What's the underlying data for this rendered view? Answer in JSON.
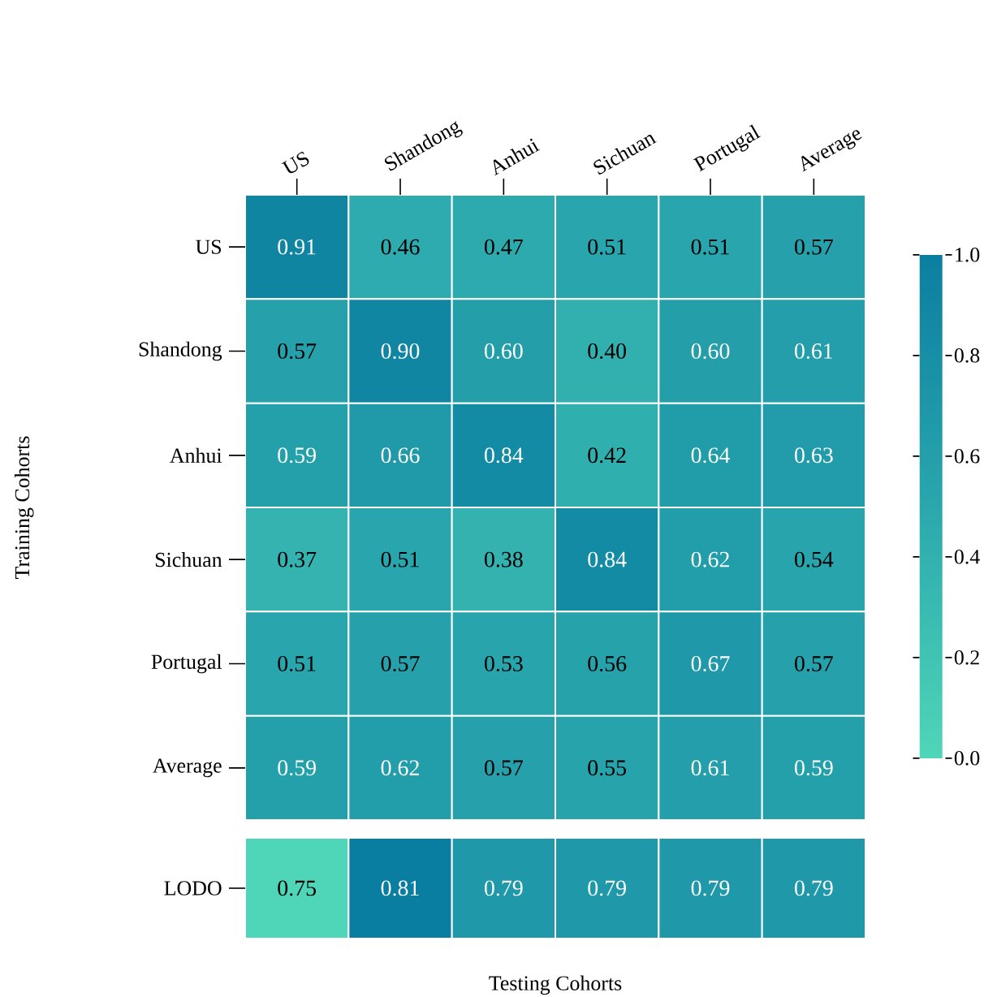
{
  "chart_data": [
    {
      "type": "heatmap",
      "ylabel": "Training Cohorts",
      "categories": [
        "US",
        "Shandong",
        "Anhui",
        "Sichuan",
        "Portugal",
        "Average"
      ],
      "y_categories": [
        "US",
        "Shandong",
        "Anhui",
        "Sichuan",
        "Portugal",
        "Average"
      ],
      "cells": [
        [
          0.91,
          0.46,
          0.47,
          0.51,
          0.51,
          0.57
        ],
        [
          0.57,
          0.9,
          0.6,
          0.4,
          0.6,
          0.61
        ],
        [
          0.59,
          0.66,
          0.84,
          0.42,
          0.64,
          0.63
        ],
        [
          0.37,
          0.51,
          0.38,
          0.84,
          0.62,
          0.54
        ],
        [
          0.51,
          0.57,
          0.53,
          0.56,
          0.67,
          0.57
        ],
        [
          0.59,
          0.62,
          0.57,
          0.55,
          0.61,
          0.59
        ]
      ],
      "cell_labels": [
        [
          "0.91",
          "0.46",
          "0.47",
          "0.51",
          "0.51",
          "0.57"
        ],
        [
          "0.57",
          "0.90",
          "0.60",
          "0.40",
          "0.60",
          "0.61"
        ],
        [
          "0.59",
          "0.66",
          "0.84",
          "0.42",
          "0.64",
          "0.63"
        ],
        [
          "0.37",
          "0.51",
          "0.38",
          "0.84",
          "0.62",
          "0.54"
        ],
        [
          "0.51",
          "0.57",
          "0.53",
          "0.56",
          "0.67",
          "0.57"
        ],
        [
          "0.59",
          "0.62",
          "0.57",
          "0.55",
          "0.61",
          "0.59"
        ]
      ],
      "data_labels": true,
      "clim": [
        0,
        1
      ],
      "cticks": [
        {
          "value": 0,
          "label": "0.0"
        },
        {
          "value": 0.2,
          "label": "0.2"
        },
        {
          "value": 0.4,
          "label": "0.4"
        },
        {
          "value": 0.6,
          "label": "0.6"
        },
        {
          "value": 0.8,
          "label": "0.8"
        },
        {
          "value": 1,
          "label": "1.0"
        }
      ]
    },
    {
      "type": "heatmap",
      "xlabel": "Testing Cohorts",
      "categories": [
        null,
        null,
        null,
        null,
        null,
        null
      ],
      "y_categories": [
        "LODO"
      ],
      "cells": [
        [
          0.75,
          0.81,
          0.79,
          0.79,
          0.79,
          0.79
        ]
      ],
      "data_labels": true,
      "tick_labels": "y"
    }
  ]
}
